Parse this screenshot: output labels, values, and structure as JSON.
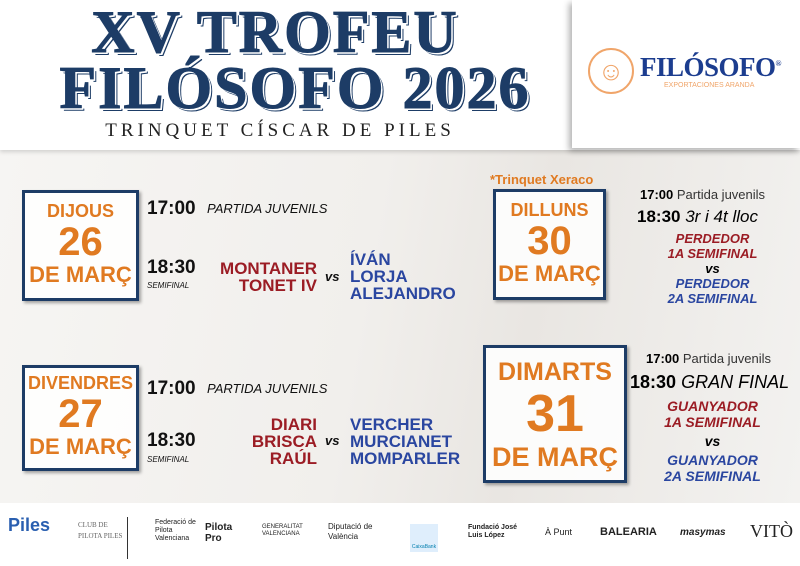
{
  "header": {
    "title_line1": "XV TROFEU",
    "title_line2": "FILÓSOFO 2026",
    "subtitle": "TRINQUET CÍSCAR DE PILES"
  },
  "sponsor": {
    "name": "FILÓSOFO",
    "mark": "®",
    "tagline": "EXPORTACIONES ARANDA",
    "icon": "philosopher-head-icon"
  },
  "days": [
    {
      "weekday": "DIJOUS",
      "day": "26",
      "month": "DE MARÇ",
      "time1": "17:00",
      "match1": "PARTIDA JUVENILS",
      "time2": "18:30",
      "round": "SEMIFINAL",
      "team_red": [
        "MONTANER",
        "TONET IV"
      ],
      "vs": "vs",
      "team_blue": [
        "ÍVÁN",
        "LORJA",
        "ALEJANDRO"
      ]
    },
    {
      "weekday": "DIVENDRES",
      "day": "27",
      "month": "DE MARÇ",
      "time1": "17:00",
      "match1": "PARTIDA JUVENILS",
      "time2": "18:30",
      "round": "SEMIFINAL",
      "team_red": [
        "DIARI",
        "BRISCA",
        "RAÚL"
      ],
      "vs": "vs",
      "team_blue": [
        "VERCHER",
        "MURCIANET",
        "MOMPARLER"
      ]
    },
    {
      "note": "*Trinquet Xeraco",
      "weekday": "DILLUNS",
      "day": "30",
      "month": "DE MARÇ",
      "time1": "17:00",
      "match1": "Partida juvenils",
      "time2": "18:30",
      "match2": "3r i 4t lloc",
      "team_red": [
        "PERDEDOR",
        "1A SEMIFINAL"
      ],
      "vs": "vs",
      "team_blue": [
        "PERDEDOR",
        "2A SEMIFINAL"
      ]
    },
    {
      "weekday": "DIMARTS",
      "day": "31",
      "month": "DE MARÇ",
      "time1": "17:00",
      "match1": "Partida juvenils",
      "time2": "18:30",
      "match2": "GRAN FINAL",
      "team_red": [
        "GUANYADOR",
        "1A SEMIFINAL"
      ],
      "vs": "vs",
      "team_blue": [
        "GUANYADOR",
        "2A SEMIFINAL"
      ]
    }
  ],
  "footer": {
    "logos": [
      "Piles",
      "CLUB DE PILOTA PILES",
      "Federació de Pilota Valenciana",
      "Pilota Pro",
      "GENERALITAT VALENCIANA",
      "Diputació de València",
      "CaixaBank",
      "Fundació José Luis López",
      "À Punt",
      "BALEARIA",
      "masymas",
      "VITÒ"
    ]
  },
  "colors": {
    "navy": "#1d3c66",
    "orange": "#e07a21",
    "red": "#9b1c24",
    "blue": "#2a46a0"
  }
}
